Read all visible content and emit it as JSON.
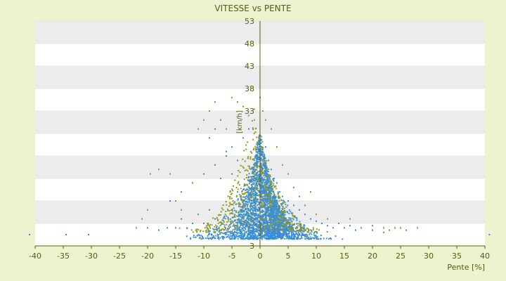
{
  "chart_data": {
    "type": "scatter",
    "title": "VITESSE vs PENTE",
    "xlabel": "Pente [%]",
    "ylabel": "[km/h]",
    "xlim": [
      -40,
      40
    ],
    "ylim": [
      3,
      53
    ],
    "x_ticks": [
      -40,
      -35,
      -30,
      -25,
      -20,
      -15,
      -10,
      -5,
      0,
      5,
      10,
      15,
      20,
      25,
      30,
      35,
      40
    ],
    "y_ticks": [
      53,
      48,
      43,
      38,
      33,
      28,
      23,
      18,
      13,
      8,
      3
    ],
    "y_tick_labels": [
      "53",
      "48",
      "43",
      "38",
      "33",
      "",
      "",
      "",
      "",
      "",
      "3"
    ],
    "grid": "horizontal bands",
    "legend": "none",
    "colors": {
      "series_blue": "#3a8ed6",
      "series_olive": "#8f9820",
      "band_light": "#ffffff",
      "band_grey": "#ececec",
      "axis": "#5a5a10"
    },
    "series": [
      {
        "color": "#3a8ed6",
        "points": [
          [
            -34.5,
            5.5
          ],
          [
            -30.5,
            5.5
          ],
          [
            -41,
            5.5
          ],
          [
            40.8,
            5.5
          ],
          [
            -20,
            7
          ],
          [
            -18,
            6.5
          ],
          [
            -16.5,
            7
          ],
          [
            -15,
            7
          ],
          [
            -14,
            9
          ],
          [
            -13,
            7
          ],
          [
            -12,
            8
          ],
          [
            -11,
            10
          ],
          [
            -10,
            8
          ],
          [
            -9,
            11
          ],
          [
            -8,
            9
          ],
          [
            -16,
            13
          ],
          [
            -14,
            15
          ],
          [
            -12,
            17
          ],
          [
            -10,
            19
          ],
          [
            -8,
            21
          ],
          [
            -7,
            18
          ],
          [
            -6,
            23
          ],
          [
            -5,
            25
          ],
          [
            -4,
            22
          ],
          [
            -3,
            27
          ],
          [
            -2,
            29
          ],
          [
            -9,
            27
          ],
          [
            -8,
            29
          ],
          [
            -7,
            31
          ],
          [
            -6,
            24
          ],
          [
            -5,
            19
          ],
          [
            -4,
            15
          ],
          [
            -3,
            13
          ],
          [
            -2,
            11
          ],
          [
            -1,
            9
          ],
          [
            0,
            7
          ],
          [
            1,
            25
          ],
          [
            1.5,
            22
          ],
          [
            2,
            20
          ],
          [
            2.5,
            18
          ],
          [
            3,
            17
          ],
          [
            3.5,
            15
          ],
          [
            4,
            14
          ],
          [
            5,
            13
          ],
          [
            6,
            12
          ],
          [
            7,
            11
          ],
          [
            8,
            10
          ],
          [
            9,
            9
          ],
          [
            10,
            8.5
          ],
          [
            11,
            8
          ],
          [
            12,
            7.5
          ],
          [
            13,
            7
          ],
          [
            14,
            8
          ],
          [
            15,
            7
          ],
          [
            16,
            7.5
          ],
          [
            17,
            6.5
          ],
          [
            18,
            7
          ],
          [
            20,
            6.5
          ],
          [
            22,
            6
          ]
        ]
      },
      {
        "color": "#8f9820",
        "points": [
          [
            -22,
            7
          ],
          [
            -21,
            9
          ],
          [
            -20,
            11
          ],
          [
            -19.5,
            19
          ],
          [
            -18,
            20
          ],
          [
            -16,
            19
          ],
          [
            -15,
            13
          ],
          [
            -14,
            11
          ],
          [
            -12,
            17
          ],
          [
            -11,
            29
          ],
          [
            -10,
            31
          ],
          [
            -9,
            33
          ],
          [
            -8,
            35
          ],
          [
            -7,
            31
          ],
          [
            -6,
            29
          ],
          [
            -5,
            36
          ],
          [
            -4,
            35
          ],
          [
            -3,
            34
          ],
          [
            -2,
            32
          ],
          [
            -1,
            31
          ],
          [
            0,
            36
          ],
          [
            0.5,
            33
          ],
          [
            1,
            31
          ],
          [
            2,
            29
          ],
          [
            3,
            25
          ],
          [
            4,
            21
          ],
          [
            5,
            19
          ],
          [
            6,
            16
          ],
          [
            7,
            14
          ],
          [
            8,
            12
          ],
          [
            9,
            15
          ],
          [
            10,
            10
          ],
          [
            12,
            9
          ],
          [
            14,
            8
          ],
          [
            16,
            9
          ],
          [
            18,
            7
          ],
          [
            20,
            7.5
          ],
          [
            22,
            7
          ],
          [
            23,
            6.5
          ],
          [
            24,
            7
          ],
          [
            25,
            7
          ],
          [
            26,
            6.5
          ],
          [
            28,
            7
          ]
        ]
      }
    ]
  }
}
